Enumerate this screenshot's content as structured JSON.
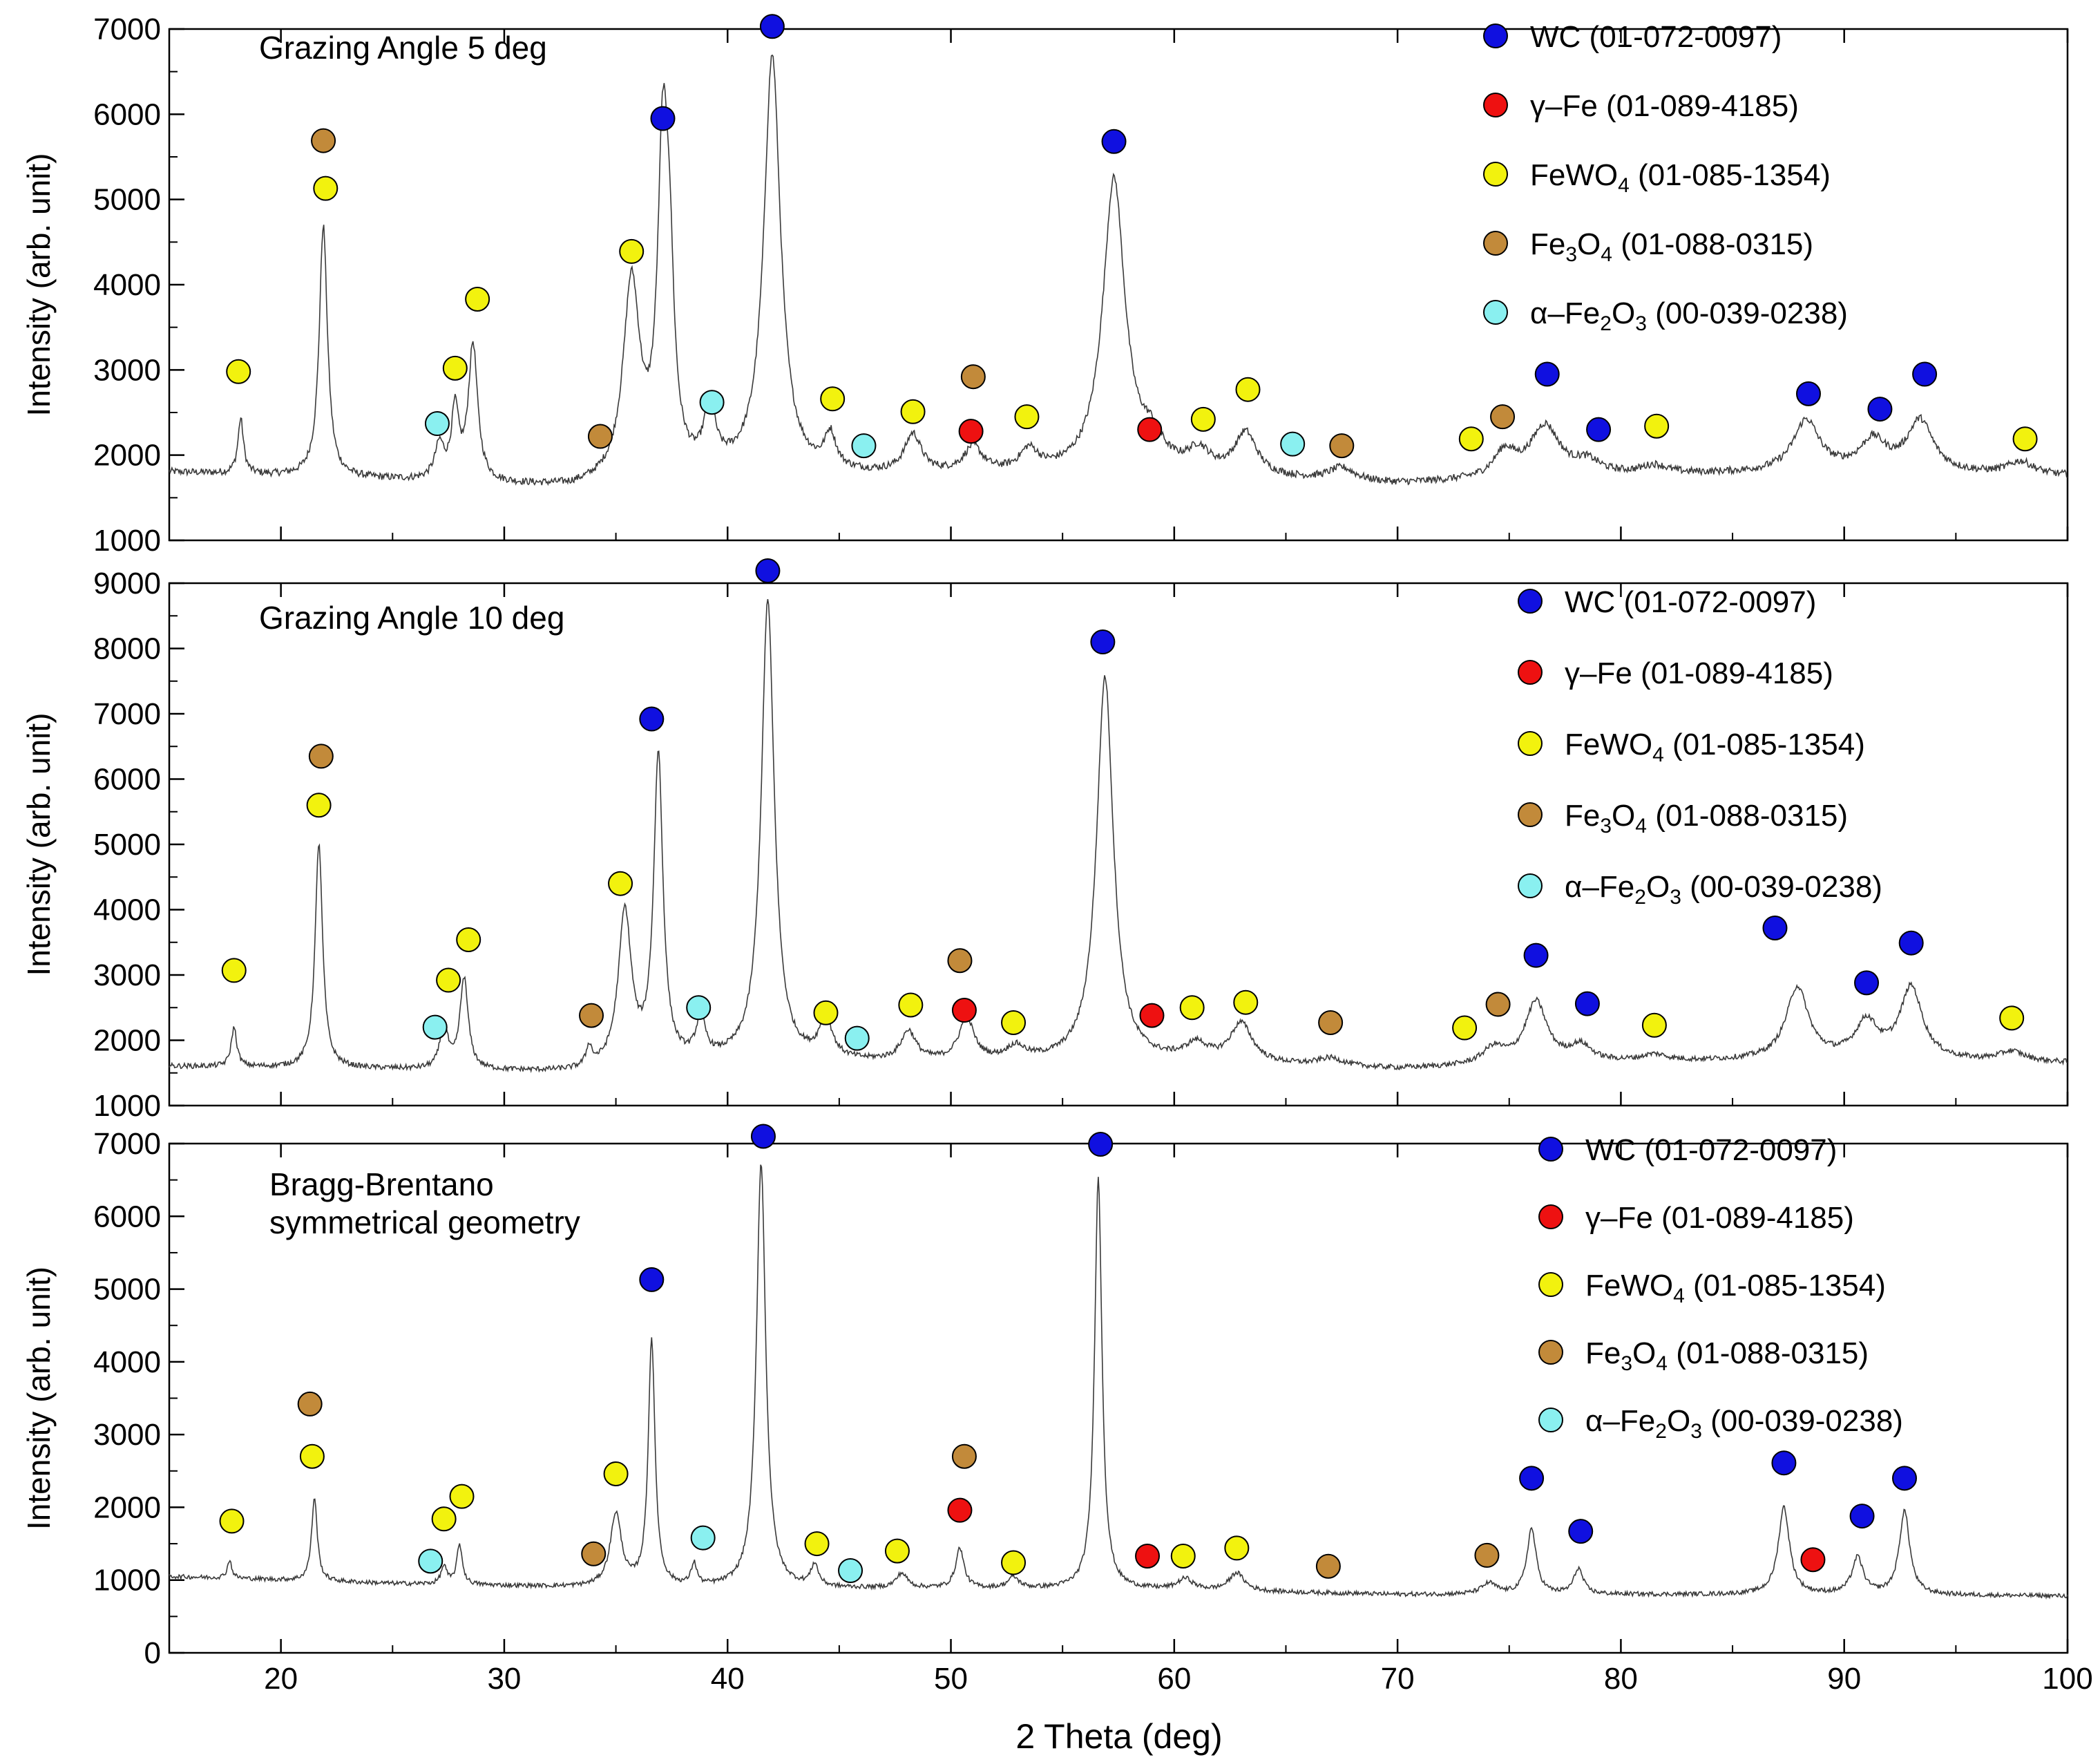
{
  "figure": {
    "x_axis_label": "2 Theta (deg)"
  },
  "chart_data": [
    {
      "type": "line",
      "title": "Grazing Angle 5 deg",
      "xlabel": "",
      "ylabel": "Intensity (arb. unit)",
      "xlim": [
        15,
        100
      ],
      "ylim": [
        1000,
        7000
      ],
      "y_ticks": [
        1000,
        2000,
        3000,
        4000,
        5000,
        6000,
        7000
      ],
      "background": [
        [
          15,
          1800
        ],
        [
          25,
          1700
        ],
        [
          33,
          1600
        ],
        [
          40,
          1750
        ],
        [
          50,
          1750
        ],
        [
          60,
          1750
        ],
        [
          70,
          1650
        ],
        [
          80,
          1750
        ],
        [
          90,
          1800
        ],
        [
          100,
          1750
        ]
      ],
      "peaks": [
        [
          18.2,
          650,
          0.15
        ],
        [
          21.9,
          2950,
          0.22
        ],
        [
          27.1,
          400,
          0.25
        ],
        [
          27.8,
          800,
          0.2
        ],
        [
          28.6,
          1600,
          0.25
        ],
        [
          35.7,
          2300,
          0.45
        ],
        [
          37.1,
          3600,
          0.28
        ],
        [
          37.4,
          1800,
          0.25
        ],
        [
          39.2,
          700,
          0.3
        ],
        [
          42.0,
          4900,
          0.45
        ],
        [
          44.6,
          400,
          0.3
        ],
        [
          48.3,
          450,
          0.45
        ],
        [
          51.0,
          300,
          0.5
        ],
        [
          53.5,
          250,
          0.5
        ],
        [
          57.3,
          3450,
          0.6
        ],
        [
          59.0,
          300,
          0.6
        ],
        [
          61.1,
          250,
          0.6
        ],
        [
          63.2,
          500,
          0.6
        ],
        [
          67.5,
          150,
          0.7
        ],
        [
          74.8,
          300,
          0.6
        ],
        [
          76.6,
          600,
          0.8
        ],
        [
          78.5,
          150,
          0.7
        ],
        [
          81.5,
          100,
          0.7
        ],
        [
          88.3,
          600,
          0.7
        ],
        [
          91.3,
          350,
          0.7
        ],
        [
          93.4,
          600,
          0.7
        ],
        [
          97.9,
          150,
          0.7
        ]
      ],
      "noise": 42,
      "series": [
        {
          "name": "WC (01-072-0097)",
          "color": "#1010e0",
          "points": [
            [
              42.0,
              7030
            ],
            [
              37.1,
              5950
            ],
            [
              57.3,
              5680
            ],
            [
              76.7,
              2950
            ],
            [
              79.0,
              2300
            ],
            [
              88.4,
              2720
            ],
            [
              91.6,
              2540
            ],
            [
              93.6,
              2950
            ]
          ]
        },
        {
          "name": "γ–Fe (01-089-4185)",
          "color": "#ee1111",
          "points": [
            [
              50.9,
              2280
            ],
            [
              58.9,
              2300
            ]
          ]
        },
        {
          "name": "FeWO4 (01-085-1354)",
          "color": "#f2f20e",
          "points": [
            [
              18.1,
              2980
            ],
            [
              22.0,
              5130
            ],
            [
              27.8,
              3020
            ],
            [
              28.8,
              3830
            ],
            [
              35.7,
              4390
            ],
            [
              44.7,
              2660
            ],
            [
              48.3,
              2510
            ],
            [
              53.4,
              2450
            ],
            [
              61.3,
              2420
            ],
            [
              63.3,
              2770
            ],
            [
              73.3,
              2190
            ],
            [
              81.6,
              2340
            ],
            [
              98.1,
              2190
            ]
          ]
        },
        {
          "name": "Fe3O4 (01-088-0315)",
          "color": "#c28a3a",
          "points": [
            [
              21.9,
              5690
            ],
            [
              34.3,
              2220
            ],
            [
              51.0,
              2920
            ],
            [
              67.5,
              2110
            ],
            [
              74.7,
              2450
            ]
          ]
        },
        {
          "name": "α–Fe2O3 (00-039-0238)",
          "color": "#8af0f0",
          "points": [
            [
              27.0,
              2370
            ],
            [
              39.3,
              2620
            ],
            [
              46.1,
              2110
            ],
            [
              65.3,
              2130
            ]
          ]
        }
      ],
      "legend": [
        {
          "label": "WC (01-072-0097)",
          "color": "#1010e0",
          "formula_main": "WC",
          "formula_sub": "",
          "formula_rest": "",
          "ref": "(01-072-0097)"
        },
        {
          "label": "γ–Fe (01-089-4185)",
          "color": "#ee1111",
          "formula_main": "γ–Fe",
          "formula_sub": "",
          "formula_rest": "",
          "ref": "(01-089-4185)"
        },
        {
          "label": "FeWO4 (01-085-1354)",
          "color": "#f2f20e",
          "formula_main": "FeWO",
          "formula_sub": "4",
          "formula_rest": "",
          "ref": "(01-085-1354)"
        },
        {
          "label": "Fe3O4 (01-088-0315)",
          "color": "#c28a3a",
          "formula_main": "Fe",
          "formula_sub": "3",
          "formula_rest": "O4",
          "ref": "(01-088-0315)"
        },
        {
          "label": "α–Fe2O3 (00-039-0238)",
          "color": "#8af0f0",
          "formula_main": "α–Fe",
          "formula_sub": "2",
          "formula_rest": "O3",
          "ref": "(00-039-0238)"
        }
      ]
    },
    {
      "type": "line",
      "title": "Grazing Angle 10 deg",
      "xlabel": "",
      "ylabel": "Intensity (arb. unit)",
      "xlim": [
        15,
        100
      ],
      "ylim": [
        1000,
        9000
      ],
      "y_ticks": [
        1000,
        2000,
        3000,
        4000,
        5000,
        6000,
        7000,
        8000,
        9000
      ],
      "background": [
        [
          15,
          1600
        ],
        [
          25,
          1550
        ],
        [
          33,
          1500
        ],
        [
          40,
          1650
        ],
        [
          50,
          1650
        ],
        [
          60,
          1650
        ],
        [
          70,
          1550
        ],
        [
          80,
          1650
        ],
        [
          90,
          1700
        ],
        [
          100,
          1650
        ]
      ],
      "peaks": [
        [
          17.9,
          600,
          0.15
        ],
        [
          21.7,
          3450,
          0.2
        ],
        [
          27.3,
          700,
          0.2
        ],
        [
          28.2,
          1400,
          0.22
        ],
        [
          33.8,
          300,
          0.15
        ],
        [
          35.4,
          2350,
          0.35
        ],
        [
          36.9,
          4700,
          0.25
        ],
        [
          38.8,
          600,
          0.25
        ],
        [
          41.8,
          7050,
          0.35
        ],
        [
          44.4,
          600,
          0.35
        ],
        [
          48.1,
          450,
          0.4
        ],
        [
          50.7,
          650,
          0.4
        ],
        [
          52.9,
          200,
          0.5
        ],
        [
          56.9,
          5900,
          0.45
        ],
        [
          61.0,
          250,
          0.6
        ],
        [
          63.0,
          600,
          0.6
        ],
        [
          67.0,
          120,
          0.7
        ],
        [
          74.3,
          250,
          0.6
        ],
        [
          76.2,
          950,
          0.6
        ],
        [
          78.2,
          250,
          0.6
        ],
        [
          81.5,
          100,
          0.7
        ],
        [
          87.9,
          1100,
          0.6
        ],
        [
          91.0,
          550,
          0.6
        ],
        [
          93.0,
          1100,
          0.6
        ],
        [
          97.5,
          150,
          0.7
        ]
      ],
      "noise": 40,
      "series": [
        {
          "name": "WC (01-072-0097)",
          "color": "#1010e0",
          "points": [
            [
              41.8,
              9190
            ],
            [
              36.6,
              6920
            ],
            [
              56.8,
              8100
            ],
            [
              76.2,
              3300
            ],
            [
              78.5,
              2560
            ],
            [
              86.9,
              3720
            ],
            [
              91.0,
              2880
            ],
            [
              93.0,
              3490
            ]
          ]
        },
        {
          "name": "γ–Fe (01-089-4185)",
          "color": "#ee1111",
          "points": [
            [
              50.6,
              2460
            ],
            [
              59.0,
              2380
            ]
          ]
        },
        {
          "name": "FeWO4 (01-085-1354)",
          "color": "#f2f20e",
          "points": [
            [
              17.9,
              3070
            ],
            [
              21.7,
              5600
            ],
            [
              27.5,
              2920
            ],
            [
              28.4,
              3540
            ],
            [
              35.2,
              4400
            ],
            [
              44.4,
              2420
            ],
            [
              48.2,
              2540
            ],
            [
              52.8,
              2270
            ],
            [
              60.8,
              2500
            ],
            [
              63.2,
              2580
            ],
            [
              73.0,
              2190
            ],
            [
              81.5,
              2230
            ],
            [
              97.5,
              2340
            ]
          ]
        },
        {
          "name": "Fe3O4 (01-088-0315)",
          "color": "#c28a3a",
          "points": [
            [
              21.8,
              6350
            ],
            [
              33.9,
              2380
            ],
            [
              50.4,
              3220
            ],
            [
              67.0,
              2270
            ],
            [
              74.5,
              2550
            ]
          ]
        },
        {
          "name": "α–Fe2O3 (00-039-0238)",
          "color": "#8af0f0",
          "points": [
            [
              26.9,
              2200
            ],
            [
              38.7,
              2500
            ],
            [
              45.8,
              2030
            ]
          ]
        }
      ],
      "legend": [
        {
          "label": "WC (01-072-0097)",
          "color": "#1010e0",
          "formula_main": "WC",
          "formula_sub": "",
          "formula_rest": "",
          "ref": "(01-072-0097)"
        },
        {
          "label": "γ–Fe (01-089-4185)",
          "color": "#ee1111",
          "formula_main": "γ–Fe",
          "formula_sub": "",
          "formula_rest": "",
          "ref": "(01-089-4185)"
        },
        {
          "label": "FeWO4 (01-085-1354)",
          "color": "#f2f20e",
          "formula_main": "FeWO",
          "formula_sub": "4",
          "formula_rest": "",
          "ref": "(01-085-1354)"
        },
        {
          "label": "Fe3O4 (01-088-0315)",
          "color": "#c28a3a",
          "formula_main": "Fe",
          "formula_sub": "3",
          "formula_rest": "O4",
          "ref": "(01-088-0315)"
        },
        {
          "label": "α–Fe2O3 (00-039-0238)",
          "color": "#8af0f0",
          "formula_main": "α–Fe",
          "formula_sub": "2",
          "formula_rest": "O3",
          "ref": "(00-039-0238)"
        }
      ]
    },
    {
      "type": "line",
      "title": "Bragg-Brentano symmetrical geometry",
      "title_lines": [
        "Bragg-Brentano",
        "symmetrical geometry"
      ],
      "xlabel": "2 Theta (deg)",
      "ylabel": "Intensity (arb. unit)",
      "xlim": [
        15,
        100
      ],
      "ylim": [
        0,
        7000
      ],
      "y_ticks": [
        0,
        1000,
        2000,
        3000,
        4000,
        5000,
        6000,
        7000
      ],
      "x_ticks": [
        20,
        30,
        40,
        50,
        60,
        70,
        80,
        90,
        100
      ],
      "background": [
        [
          15,
          1050
        ],
        [
          25,
          950
        ],
        [
          33,
          900
        ],
        [
          40,
          880
        ],
        [
          50,
          880
        ],
        [
          60,
          860
        ],
        [
          70,
          800
        ],
        [
          80,
          800
        ],
        [
          90,
          800
        ],
        [
          100,
          780
        ]
      ],
      "peaks": [
        [
          17.7,
          250,
          0.12
        ],
        [
          21.5,
          1150,
          0.15
        ],
        [
          27.3,
          250,
          0.15
        ],
        [
          28.0,
          550,
          0.15
        ],
        [
          35.0,
          1000,
          0.3
        ],
        [
          36.6,
          3400,
          0.18
        ],
        [
          38.5,
          300,
          0.15
        ],
        [
          41.5,
          5850,
          0.25
        ],
        [
          43.9,
          300,
          0.2
        ],
        [
          47.8,
          200,
          0.3
        ],
        [
          50.4,
          550,
          0.22
        ],
        [
          52.8,
          150,
          0.3
        ],
        [
          56.6,
          5650,
          0.2
        ],
        [
          60.5,
          150,
          0.4
        ],
        [
          62.8,
          250,
          0.4
        ],
        [
          74.1,
          150,
          0.4
        ],
        [
          76.0,
          900,
          0.25
        ],
        [
          78.1,
          350,
          0.25
        ],
        [
          87.3,
          1200,
          0.3
        ],
        [
          90.6,
          500,
          0.3
        ],
        [
          92.7,
          1150,
          0.28
        ]
      ],
      "noise": 30,
      "series": [
        {
          "name": "WC (01-072-0097)",
          "color": "#1010e0",
          "points": [
            [
              41.6,
              7100
            ],
            [
              36.6,
              5130
            ],
            [
              56.7,
              6990
            ],
            [
              76.0,
              2400
            ],
            [
              78.2,
              1670
            ],
            [
              87.3,
              2610
            ],
            [
              90.8,
              1880
            ],
            [
              92.7,
              2400
            ]
          ]
        },
        {
          "name": "γ–Fe (01-089-4185)",
          "color": "#ee1111",
          "points": [
            [
              50.4,
              1960
            ],
            [
              58.8,
              1330
            ],
            [
              88.6,
              1280
            ]
          ]
        },
        {
          "name": "FeWO4 (01-085-1354)",
          "color": "#f2f20e",
          "points": [
            [
              17.8,
              1810
            ],
            [
              21.4,
              2700
            ],
            [
              27.3,
              1840
            ],
            [
              28.1,
              2150
            ],
            [
              35.0,
              2460
            ],
            [
              44.0,
              1500
            ],
            [
              47.6,
              1400
            ],
            [
              52.8,
              1240
            ],
            [
              60.4,
              1330
            ],
            [
              62.8,
              1440
            ]
          ]
        },
        {
          "name": "Fe3O4 (01-088-0315)",
          "color": "#c28a3a",
          "points": [
            [
              21.3,
              3420
            ],
            [
              34.0,
              1360
            ],
            [
              50.6,
              2700
            ],
            [
              66.9,
              1190
            ],
            [
              74.0,
              1340
            ]
          ]
        },
        {
          "name": "α–Fe2O3 (00-039-0238)",
          "color": "#8af0f0",
          "points": [
            [
              26.7,
              1260
            ],
            [
              38.9,
              1580
            ],
            [
              45.5,
              1130
            ]
          ]
        }
      ],
      "legend": [
        {
          "label": "WC (01-072-0097)",
          "color": "#1010e0",
          "formula_main": "WC",
          "formula_sub": "",
          "formula_rest": "",
          "ref": "(01-072-0097)"
        },
        {
          "label": "γ–Fe (01-089-4185)",
          "color": "#ee1111",
          "formula_main": "γ–Fe",
          "formula_sub": "",
          "formula_rest": "",
          "ref": "(01-089-4185)"
        },
        {
          "label": "FeWO4 (01-085-1354)",
          "color": "#f2f20e",
          "formula_main": "FeWO",
          "formula_sub": "4",
          "formula_rest": "",
          "ref": "(01-085-1354)"
        },
        {
          "label": "Fe3O4 (01-088-0315)",
          "color": "#c28a3a",
          "formula_main": "Fe",
          "formula_sub": "3",
          "formula_rest": "O4",
          "ref": "(01-088-0315)"
        },
        {
          "label": "α–Fe2O3 (00-039-0238)",
          "color": "#8af0f0",
          "formula_main": "α–Fe",
          "formula_sub": "2",
          "formula_rest": "O3",
          "ref": "(00-039-0238)"
        }
      ]
    }
  ]
}
